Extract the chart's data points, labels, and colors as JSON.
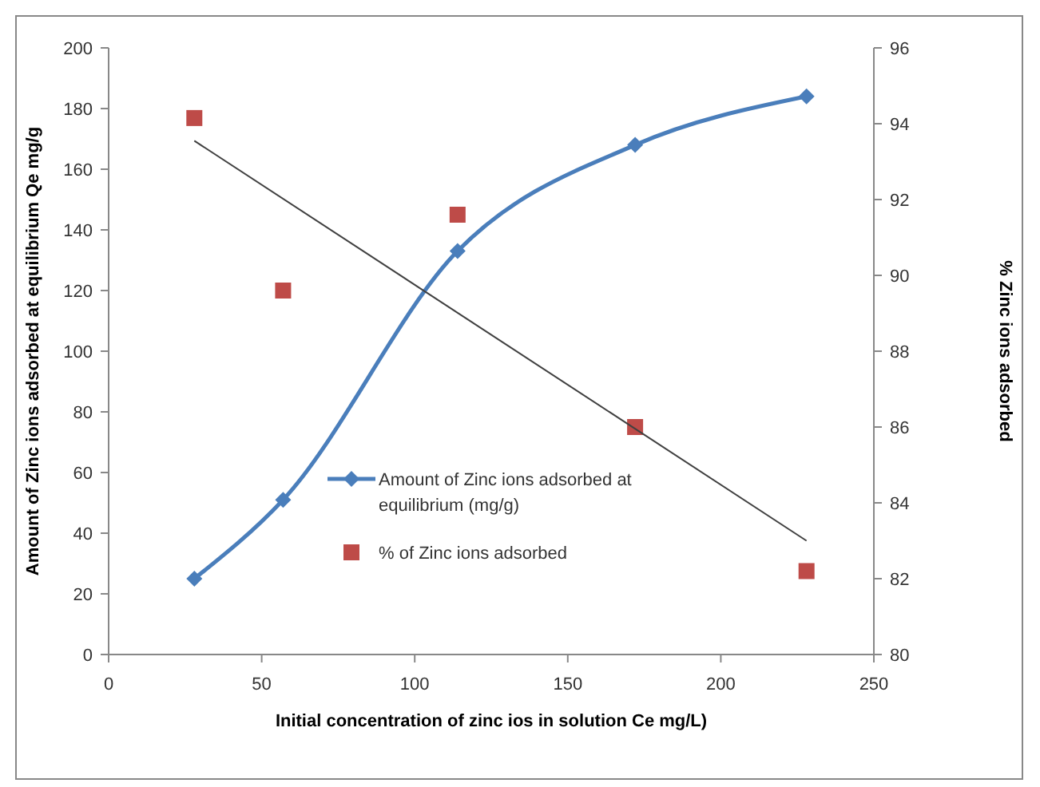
{
  "chart_data": {
    "type": "line",
    "xlabel": "Initial concentration of zinc ios in solution Ce mg/L)",
    "ylabel": "Amount of Zinc ions adsorbed at equilibrium Qe mg/g",
    "y2label": "% Zinc ions adsorbed",
    "xlim": [
      0,
      250
    ],
    "xticks": [
      0,
      50,
      100,
      150,
      200,
      250
    ],
    "ylim": [
      0,
      200
    ],
    "yticks": [
      0,
      20,
      40,
      60,
      80,
      100,
      120,
      140,
      160,
      180,
      200
    ],
    "y2lim": [
      80,
      96
    ],
    "y2ticks": [
      80,
      82,
      84,
      86,
      88,
      90,
      92,
      94,
      96
    ],
    "grid": false,
    "legend": "center",
    "series": [
      {
        "name": "Amount of Zinc ions adsorbed at equilibrium (mg/g)",
        "color": "#4a7ebb",
        "marker": "diamond",
        "x": [
          28,
          57,
          114,
          172,
          228
        ],
        "values": [
          25,
          51,
          133,
          168,
          184
        ]
      },
      {
        "name": "% of Zinc ions adsorbed",
        "type": "scatter",
        "axis": "y2",
        "color": "#be4b48",
        "marker": "square",
        "x": [
          28,
          57,
          114,
          172,
          228
        ],
        "values": [
          94.15,
          89.6,
          91.6,
          86.0,
          82.2
        ]
      },
      {
        "axis": "y2",
        "color": "#404040",
        "marker": "none",
        "x": [
          28,
          228
        ],
        "values": [
          93.55,
          83.0
        ]
      }
    ]
  }
}
